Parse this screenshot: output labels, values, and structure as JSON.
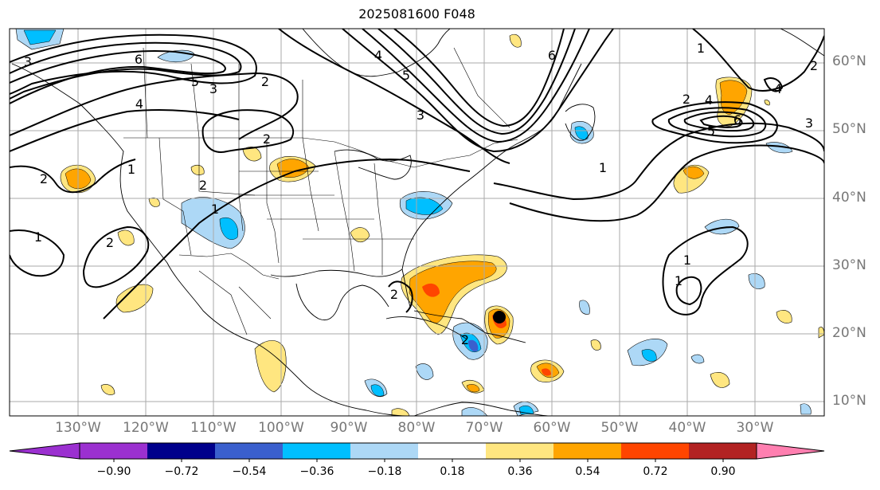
{
  "title": "2025081600 F048",
  "lat_labels": [
    "60°N",
    "50°N",
    "40°N",
    "30°N",
    "20°N",
    "10°N"
  ],
  "lon_labels": [
    "130°W",
    "120°W",
    "110°W",
    "100°W",
    "90°W",
    "80°W",
    "70°W",
    "60°W",
    "50°W",
    "40°W",
    "30°W"
  ],
  "colorbar": {
    "ticks": [
      "−0.90",
      "−0.72",
      "−0.54",
      "−0.36",
      "−0.18",
      "0.18",
      "0.36",
      "0.54",
      "0.72",
      "0.90"
    ],
    "colors": [
      "#9b30d0",
      "#00008b",
      "#3a5fcd",
      "#00bfff",
      "#add8f6",
      "#ffffff",
      "#ffe680",
      "#ffa500",
      "#ff4500",
      "#b22222",
      "#ff7fb0"
    ]
  },
  "contour_labels": [
    "6",
    "5",
    "4",
    "3",
    "2",
    "1",
    "2",
    "1",
    "2",
    "3",
    "2",
    "1",
    "6",
    "5",
    "4",
    "3",
    "2",
    "1",
    "2",
    "4",
    "5",
    "6",
    "3",
    "4",
    "2",
    "1",
    "1",
    "1",
    "2",
    "2"
  ]
}
